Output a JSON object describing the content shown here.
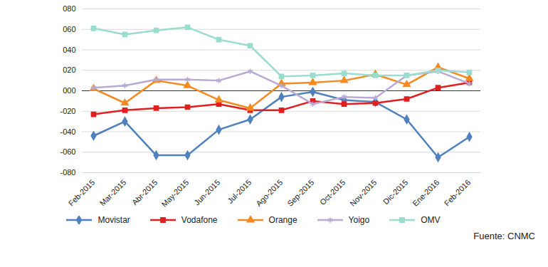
{
  "chart_data": {
    "type": "line",
    "caption": "Fuente: CNMC",
    "categories": [
      "Feb-2015",
      "Mar-2015",
      "Abr-2015",
      "May-2015",
      "Jun-2015",
      "Jul-2015",
      "Ago-2015",
      "Sep-2015",
      "Oct-2015",
      "Nov-2015",
      "Dic-2015",
      "Ene-2016",
      "Feb-2016"
    ],
    "series": [
      {
        "name": "Movistar",
        "color": "#4f81bd",
        "marker": "diamond",
        "values": [
          -44,
          -30,
          -63,
          -63,
          -38,
          -28,
          -6,
          -1,
          -9,
          -11,
          -28,
          -65,
          -45
        ]
      },
      {
        "name": "Vodafone",
        "color": "#e02020",
        "marker": "square",
        "values": [
          -23,
          -19,
          -17,
          -16,
          -13,
          -19,
          -19,
          -10,
          -13,
          -12,
          -8,
          3,
          8
        ]
      },
      {
        "name": "Orange",
        "color": "#f58a1f",
        "marker": "triangle",
        "values": [
          2,
          -12,
          10,
          5,
          -9,
          -17,
          7,
          8,
          10,
          16,
          6,
          23,
          12
        ]
      },
      {
        "name": "Yoigo",
        "color": "#b9a9d4",
        "marker": "asterisk",
        "values": [
          3,
          5,
          11,
          11,
          10,
          19,
          5,
          -13,
          -6,
          -7,
          15,
          19,
          7
        ]
      },
      {
        "name": "OMV",
        "color": "#9adccf",
        "marker": "square",
        "values": [
          61,
          55,
          59,
          62,
          50,
          44,
          14,
          15,
          17,
          15,
          15,
          20,
          18
        ]
      }
    ],
    "ylim": [
      -80,
      80
    ],
    "yticks": [
      {
        "value": -80,
        "label": "-080"
      },
      {
        "value": -60,
        "label": "-060"
      },
      {
        "value": -40,
        "label": "-040"
      },
      {
        "value": -20,
        "label": "-020"
      },
      {
        "value": 0,
        "label": "000"
      },
      {
        "value": 20,
        "label": "020"
      },
      {
        "value": 40,
        "label": "040"
      },
      {
        "value": 60,
        "label": "060"
      },
      {
        "value": 80,
        "label": "080"
      }
    ],
    "grid": true,
    "legend": "bottom"
  }
}
